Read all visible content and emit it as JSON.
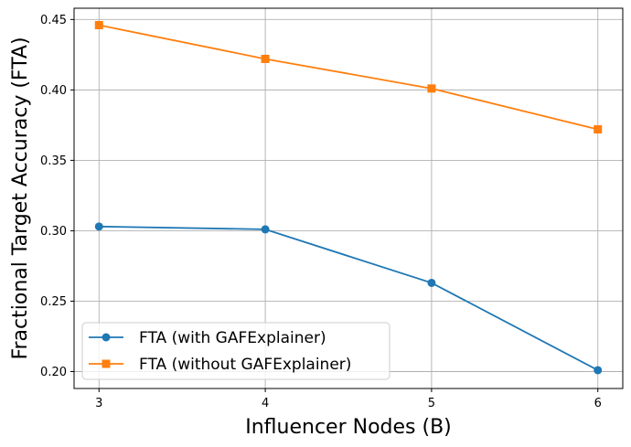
{
  "chart_data": {
    "type": "line",
    "title": "",
    "xlabel": "Influencer Nodes (B)",
    "ylabel": "Fractional Target Accuracy (FTA)",
    "x": [
      3,
      4,
      5,
      6
    ],
    "x_ticks": [
      "3",
      "4",
      "5",
      "6"
    ],
    "y_ticks": [
      "0.20",
      "0.25",
      "0.30",
      "0.35",
      "0.40",
      "0.45"
    ],
    "y_tick_values": [
      0.2,
      0.25,
      0.3,
      0.35,
      0.4,
      0.45
    ],
    "xlim": [
      2.85,
      6.15
    ],
    "ylim": [
      0.188,
      0.458
    ],
    "grid": true,
    "legend_location": "lower-left",
    "series": [
      {
        "name": "FTA (with GAFExplainer)",
        "values": [
          0.303,
          0.301,
          0.263,
          0.201
        ],
        "color": "#1f77b4",
        "marker": "circle"
      },
      {
        "name": "FTA (without GAFExplainer)",
        "values": [
          0.446,
          0.422,
          0.401,
          0.372
        ],
        "color": "#ff7f0e",
        "marker": "square"
      }
    ]
  }
}
